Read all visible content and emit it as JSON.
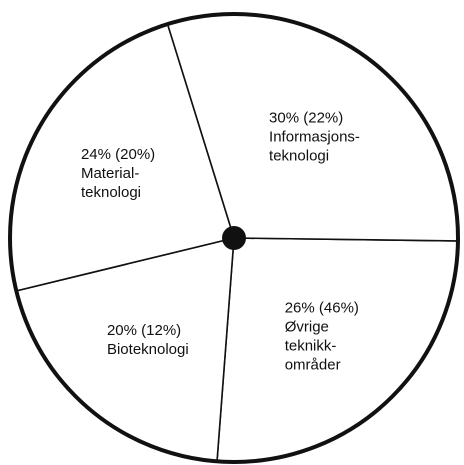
{
  "chart_data": {
    "type": "pie",
    "categories": [
      "Øvrige\nteknikk-\nområder",
      "Bioteknologi",
      "Material-\nteknologi",
      "Informasjons-\nteknologi"
    ],
    "values": [
      26,
      20,
      24,
      30
    ],
    "value_labels": [
      "26% (46%)",
      "20% (12%)",
      "24% (20%)",
      "30% (22%)"
    ],
    "color": "#ffffff"
  }
}
